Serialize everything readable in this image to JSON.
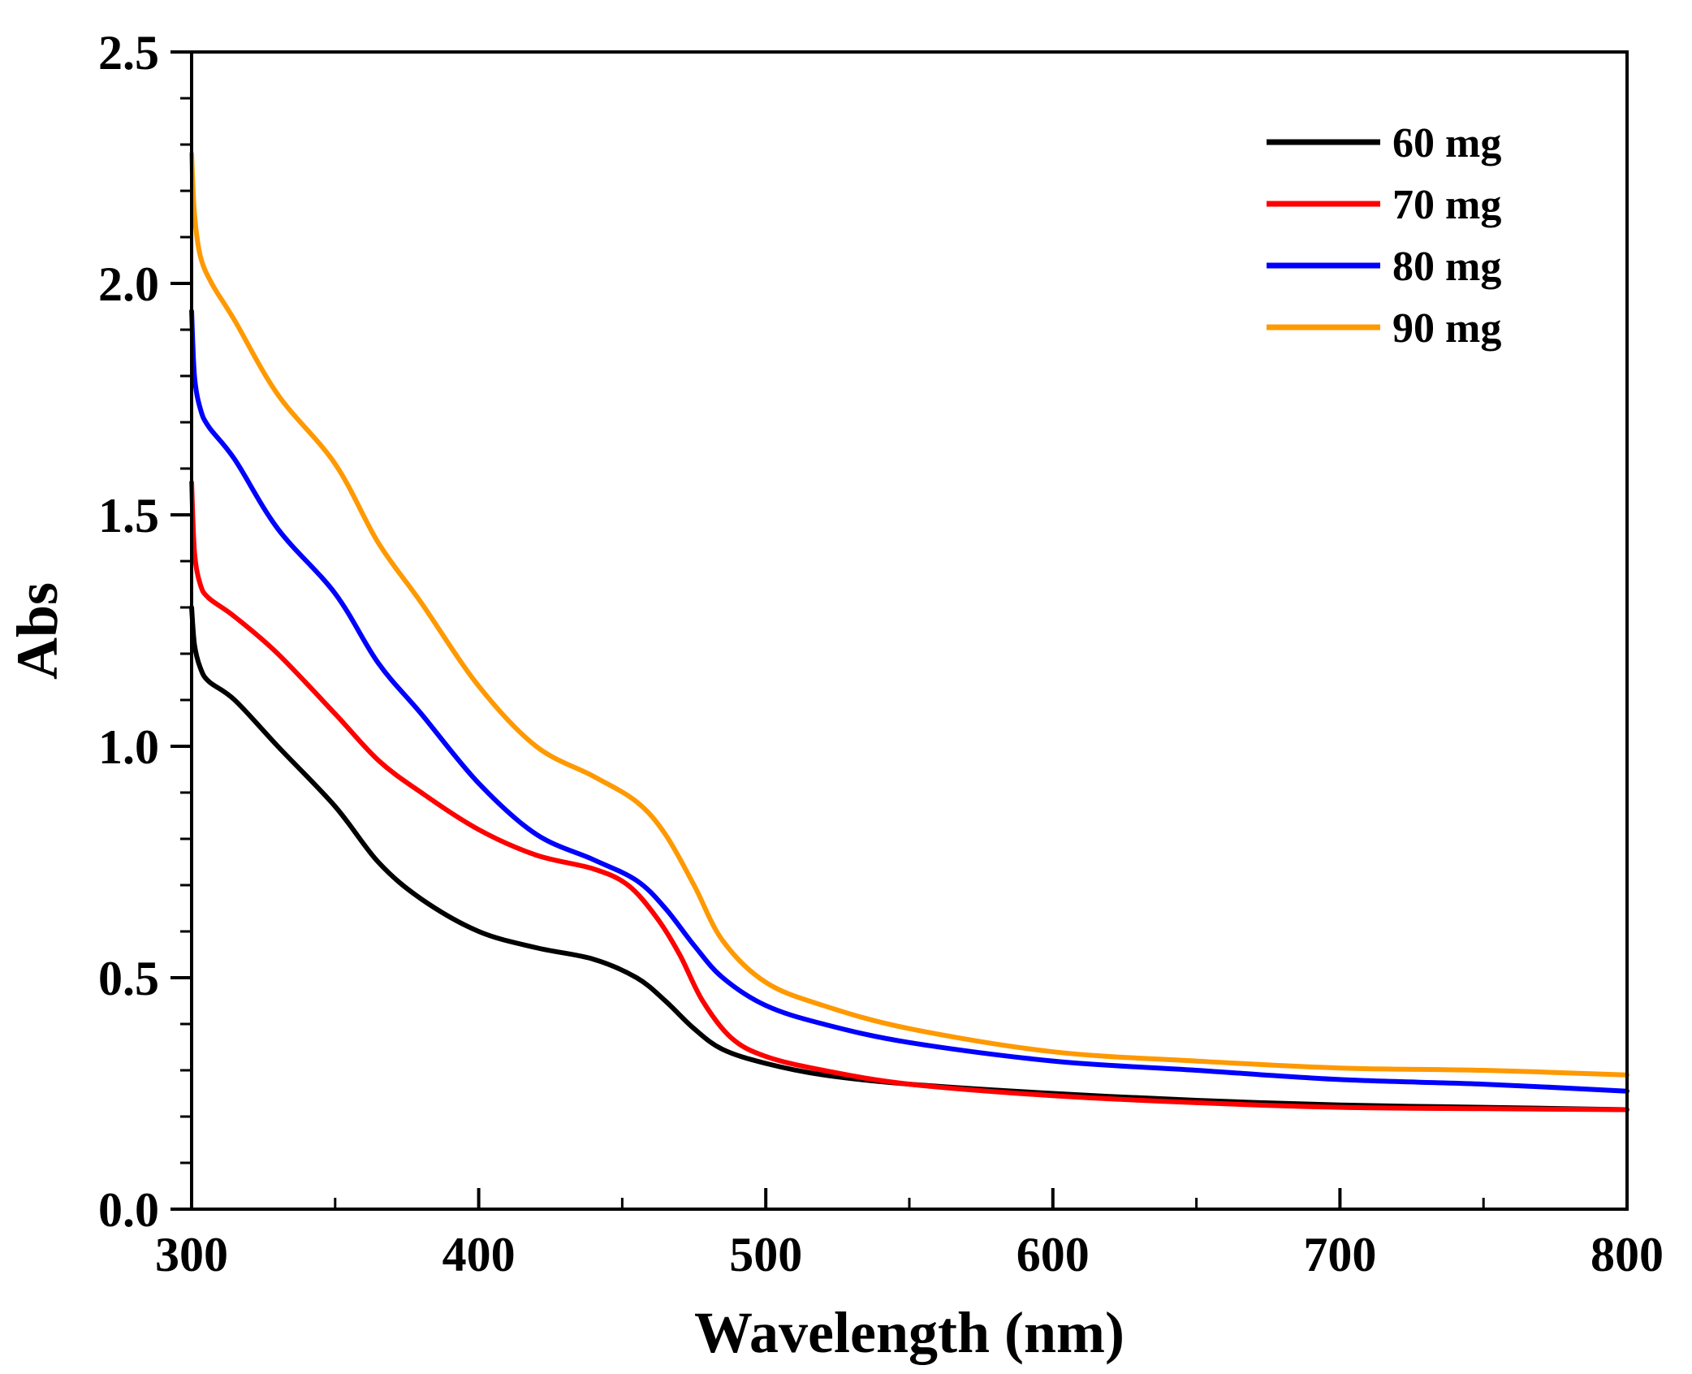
{
  "chart_data": {
    "type": "line",
    "title": "",
    "xlabel": "Wavelength (nm)",
    "ylabel": "Abs",
    "xlim": [
      300,
      800
    ],
    "ylim": [
      0.0,
      2.5
    ],
    "xticks": [
      300,
      400,
      500,
      600,
      700,
      800
    ],
    "xtick_labels": [
      "300",
      "400",
      "500",
      "600",
      "700",
      "800"
    ],
    "yticks": [
      0.0,
      0.5,
      1.0,
      1.5,
      2.0,
      2.5
    ],
    "ytick_labels": [
      "0.0",
      "0.5",
      "1.0",
      "1.5",
      "2.0",
      "2.5"
    ],
    "grid": false,
    "legend_position": "top-right",
    "series": [
      {
        "name": "60 mg",
        "color": "#000000",
        "points": [
          [
            300,
            1.3
          ],
          [
            301,
            1.22
          ],
          [
            303,
            1.17
          ],
          [
            306,
            1.14
          ],
          [
            315,
            1.1
          ],
          [
            330,
            1.0
          ],
          [
            350,
            0.87
          ],
          [
            365,
            0.75
          ],
          [
            380,
            0.67
          ],
          [
            400,
            0.6
          ],
          [
            420,
            0.565
          ],
          [
            440,
            0.54
          ],
          [
            455,
            0.5
          ],
          [
            465,
            0.45
          ],
          [
            475,
            0.39
          ],
          [
            485,
            0.345
          ],
          [
            500,
            0.315
          ],
          [
            520,
            0.29
          ],
          [
            550,
            0.27
          ],
          [
            600,
            0.25
          ],
          [
            650,
            0.235
          ],
          [
            700,
            0.225
          ],
          [
            750,
            0.22
          ],
          [
            800,
            0.215
          ]
        ]
      },
      {
        "name": "70 mg",
        "color": "#ff0000",
        "points": [
          [
            300,
            1.57
          ],
          [
            301,
            1.42
          ],
          [
            303,
            1.35
          ],
          [
            306,
            1.32
          ],
          [
            315,
            1.28
          ],
          [
            330,
            1.2
          ],
          [
            350,
            1.07
          ],
          [
            365,
            0.97
          ],
          [
            380,
            0.9
          ],
          [
            400,
            0.82
          ],
          [
            420,
            0.765
          ],
          [
            440,
            0.735
          ],
          [
            452,
            0.7
          ],
          [
            462,
            0.63
          ],
          [
            470,
            0.55
          ],
          [
            478,
            0.45
          ],
          [
            488,
            0.37
          ],
          [
            500,
            0.33
          ],
          [
            520,
            0.3
          ],
          [
            550,
            0.27
          ],
          [
            600,
            0.245
          ],
          [
            650,
            0.23
          ],
          [
            700,
            0.22
          ],
          [
            750,
            0.217
          ],
          [
            800,
            0.215
          ]
        ]
      },
      {
        "name": "80 mg",
        "color": "#0000ff",
        "points": [
          [
            300,
            1.94
          ],
          [
            301,
            1.8
          ],
          [
            303,
            1.73
          ],
          [
            306,
            1.69
          ],
          [
            315,
            1.62
          ],
          [
            330,
            1.47
          ],
          [
            350,
            1.33
          ],
          [
            365,
            1.18
          ],
          [
            380,
            1.07
          ],
          [
            400,
            0.92
          ],
          [
            420,
            0.81
          ],
          [
            440,
            0.755
          ],
          [
            455,
            0.71
          ],
          [
            465,
            0.65
          ],
          [
            475,
            0.57
          ],
          [
            485,
            0.5
          ],
          [
            500,
            0.44
          ],
          [
            520,
            0.4
          ],
          [
            550,
            0.36
          ],
          [
            600,
            0.32
          ],
          [
            650,
            0.3
          ],
          [
            700,
            0.28
          ],
          [
            750,
            0.27
          ],
          [
            800,
            0.255
          ]
        ]
      },
      {
        "name": "90 mg",
        "color": "#ff9900",
        "points": [
          [
            300,
            2.28
          ],
          [
            301,
            2.15
          ],
          [
            303,
            2.06
          ],
          [
            307,
            2.0
          ],
          [
            315,
            1.92
          ],
          [
            330,
            1.76
          ],
          [
            350,
            1.61
          ],
          [
            365,
            1.44
          ],
          [
            380,
            1.31
          ],
          [
            400,
            1.13
          ],
          [
            420,
            1.0
          ],
          [
            440,
            0.935
          ],
          [
            455,
            0.88
          ],
          [
            465,
            0.81
          ],
          [
            475,
            0.7
          ],
          [
            485,
            0.58
          ],
          [
            500,
            0.49
          ],
          [
            520,
            0.44
          ],
          [
            550,
            0.39
          ],
          [
            600,
            0.34
          ],
          [
            650,
            0.32
          ],
          [
            700,
            0.305
          ],
          [
            750,
            0.3
          ],
          [
            800,
            0.29
          ]
        ]
      }
    ]
  }
}
